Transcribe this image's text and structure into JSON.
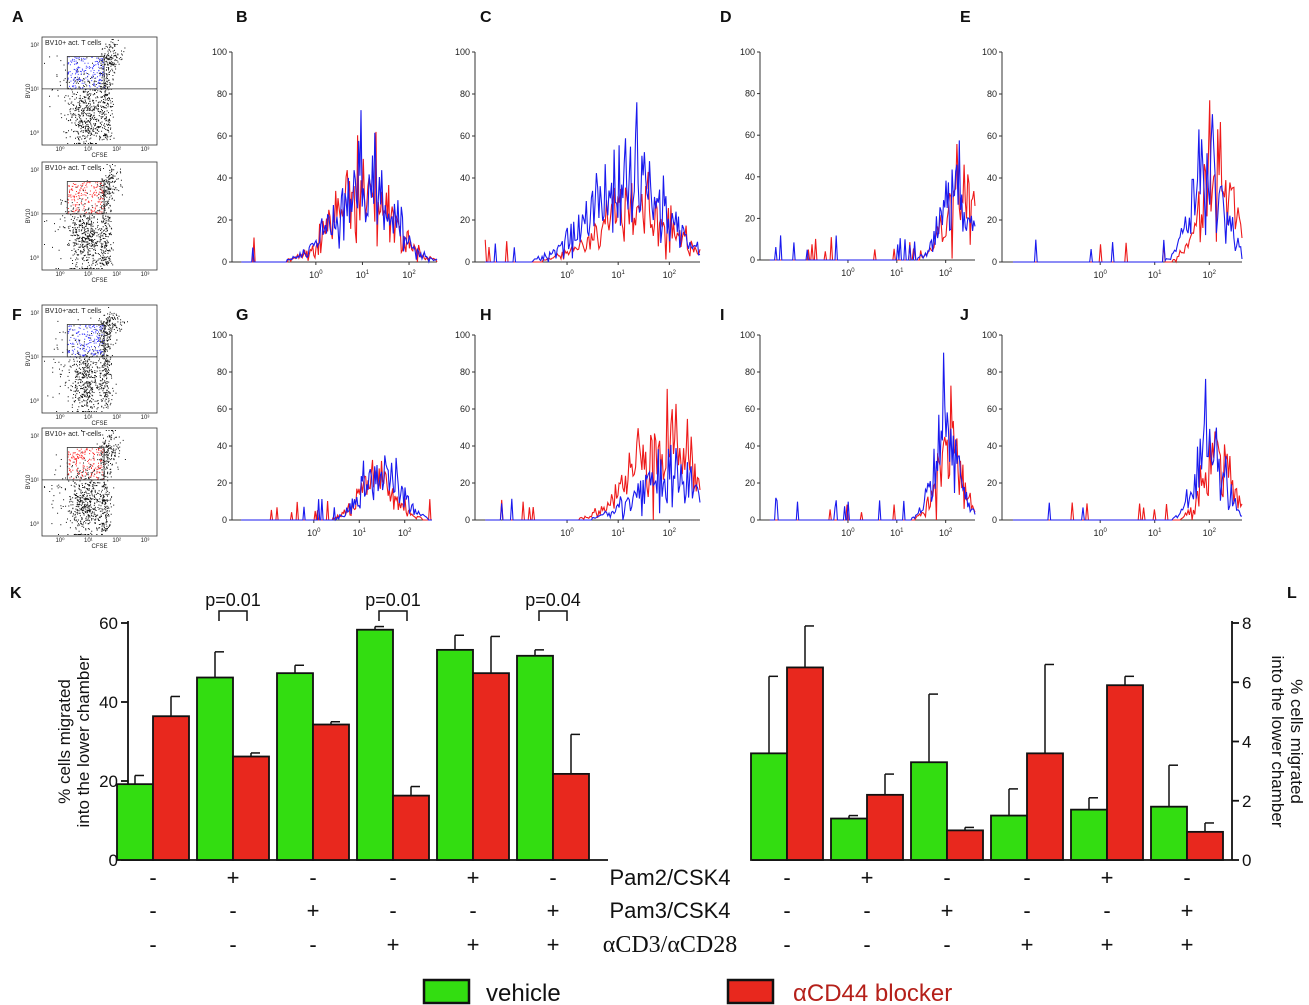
{
  "colors": {
    "vehicle": "#33dd11",
    "blocker": "#e8281e",
    "hist_blue": "#1a1aee",
    "hist_red": "#ee1a1a",
    "legend_blocker_text": "#b5201a"
  },
  "panel_labels": [
    "A",
    "B",
    "C",
    "D",
    "E",
    "F",
    "G",
    "H",
    "I",
    "J",
    "K",
    "L"
  ],
  "flow": {
    "gate_label": "BV10+ act. T cells",
    "ylabel": "BV10",
    "xlabel": "CFSE",
    "panels": [
      {
        "id": "A-top",
        "gate_color": "blue"
      },
      {
        "id": "A-bottom",
        "gate_color": "red"
      },
      {
        "id": "F-top",
        "gate_color": "blue"
      },
      {
        "id": "F-bottom",
        "gate_color": "red"
      }
    ]
  },
  "histograms": {
    "y_ticks": [
      "0",
      "20",
      "40",
      "60",
      "80",
      "100"
    ],
    "x_ticks": [
      "10^0",
      "10^1",
      "10^2"
    ],
    "panels": [
      {
        "id": "B",
        "peak_blue": [
          1.0,
          37
        ],
        "peak_red": [
          1.0,
          35
        ],
        "width": 0.6
      },
      {
        "id": "C",
        "peak_blue": [
          1.2,
          40
        ],
        "peak_red": [
          1.3,
          25
        ],
        "width": 0.7
      },
      {
        "id": "D",
        "peak_blue": [
          2.2,
          30
        ],
        "peak_red": [
          2.3,
          36
        ],
        "width": 0.3
      },
      {
        "id": "E",
        "peak_blue": [
          2.0,
          45
        ],
        "peak_red": [
          2.15,
          40
        ],
        "width": 0.3
      },
      {
        "id": "G",
        "peak_blue": [
          1.5,
          25
        ],
        "peak_red": [
          1.4,
          20
        ],
        "width": 0.4
      },
      {
        "id": "H",
        "peak_blue": [
          2.0,
          25
        ],
        "peak_red": [
          1.9,
          45
        ],
        "width": 0.6
      },
      {
        "id": "I",
        "peak_blue": [
          2.0,
          50
        ],
        "peak_red": [
          2.05,
          40
        ],
        "width": 0.25
      },
      {
        "id": "J",
        "peak_blue": [
          2.0,
          40
        ],
        "peak_red": [
          2.15,
          38
        ],
        "width": 0.25
      }
    ]
  },
  "chart_data": [
    {
      "panel": "K",
      "type": "bar",
      "ylabel": "% cells migrated into the lower chamber",
      "ylabel_lines": [
        "% cells migrated",
        "into the lower chamber"
      ],
      "ylim": [
        0,
        60
      ],
      "y_ticks": [
        "0",
        "20",
        "40",
        "60"
      ],
      "categories": [
        "1",
        "2",
        "3",
        "4",
        "5",
        "6"
      ],
      "series": [
        {
          "name": "vehicle",
          "values": [
            19.2,
            46.2,
            47.3,
            58.3,
            53.2,
            51.7
          ],
          "errors": [
            2.2,
            6.5,
            2.0,
            0.8,
            3.7,
            1.5
          ]
        },
        {
          "name": "αCD44 blocker",
          "values": [
            36.4,
            26.2,
            34.3,
            16.3,
            47.3,
            21.8
          ],
          "errors": [
            5.0,
            0.9,
            0.7,
            2.3,
            9.3,
            10.0
          ]
        }
      ],
      "pvalues": [
        {
          "group": 1,
          "text": "p=0.01"
        },
        {
          "group": 3,
          "text": "p=0.01"
        },
        {
          "group": 5,
          "text": "p=0.04"
        }
      ]
    },
    {
      "panel": "L",
      "type": "bar",
      "ylabel": "% cells migrated into the lower chamber",
      "ylabel_lines": [
        "% cells migrated",
        "into the lower chamber"
      ],
      "ylim": [
        0,
        8
      ],
      "y_ticks": [
        "0",
        "2",
        "4",
        "6",
        "8"
      ],
      "categories": [
        "1",
        "2",
        "3",
        "4",
        "5",
        "6"
      ],
      "series": [
        {
          "name": "vehicle",
          "values": [
            3.6,
            1.4,
            3.3,
            1.5,
            1.7,
            1.8
          ],
          "errors": [
            2.6,
            0.1,
            2.3,
            0.9,
            0.4,
            1.4
          ]
        },
        {
          "name": "αCD44 blocker",
          "values": [
            6.5,
            2.2,
            1.0,
            3.6,
            5.9,
            0.95
          ],
          "errors": [
            1.4,
            0.7,
            0.1,
            3.0,
            0.3,
            0.3
          ]
        }
      ]
    }
  ],
  "conditions": {
    "rows": [
      {
        "label": "Pam2/CSK4",
        "signs": [
          "-",
          "+",
          "-",
          "-",
          "+",
          "-"
        ]
      },
      {
        "label": "Pam3/CSK4",
        "signs": [
          "-",
          "-",
          "+",
          "-",
          "-",
          "+"
        ]
      },
      {
        "label": "αCD3/αCD28",
        "signs": [
          "-",
          "-",
          "-",
          "+",
          "+",
          "+"
        ]
      }
    ]
  },
  "legend": {
    "vehicle": "vehicle",
    "blocker": "αCD44 blocker"
  }
}
